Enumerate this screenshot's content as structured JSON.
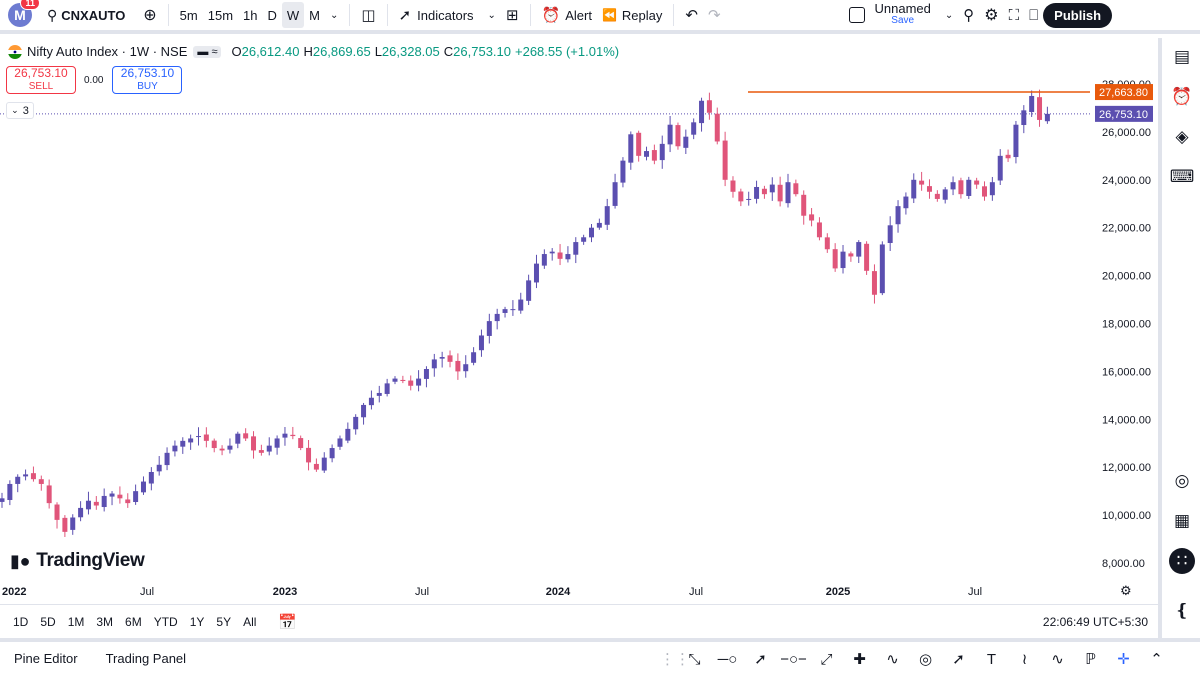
{
  "toolbar": {
    "avatar_letter": "M",
    "notification_count": "11",
    "symbol": "CNXAUTO",
    "timeframes": [
      "5m",
      "15m",
      "1h",
      "D",
      "W",
      "M"
    ],
    "active_timeframe": "W",
    "indicators_label": "Indicators",
    "alert_label": "Alert",
    "replay_label": "Replay",
    "layout_name": "Unnamed",
    "save_label": "Save",
    "publish_label": "Publish"
  },
  "legend": {
    "title": "Nifty Auto Index · 1W · NSE",
    "o_key": "O",
    "o_val": "26,612.40",
    "h_key": "H",
    "h_val": "26,869.65",
    "l_key": "L",
    "l_val": "26,328.05",
    "c_key": "C",
    "c_val": "26,753.10",
    "change": "+268.55 (+1.01%)"
  },
  "trading": {
    "sell_price": "26,753.10",
    "sell_label": "SELL",
    "spread": "0.00",
    "buy_price": "26,753.10",
    "buy_label": "BUY",
    "collapse_count": "3"
  },
  "watermark": "TradingView",
  "range_buttons": [
    "1D",
    "5D",
    "1M",
    "3M",
    "6M",
    "YTD",
    "1Y",
    "5Y",
    "All"
  ],
  "clock": "22:06:49 UTC+5:30",
  "bottom_tabs": {
    "pine": "Pine Editor",
    "panel": "Trading Panel"
  },
  "colors": {
    "up": "#5b4fb0",
    "down": "#e0557a",
    "line": "#e8590c",
    "price": "#5b4fb0"
  },
  "chart_data": {
    "type": "candlestick",
    "y_ticks": [
      "8,000.00",
      "10,000.00",
      "12,000.00",
      "14,000.00",
      "16,000.00",
      "18,000.00",
      "20,000.00",
      "22,000.00",
      "24,000.00",
      "26,000.00",
      "28,000.00"
    ],
    "y_tick_values": [
      8000,
      10000,
      12000,
      14000,
      16000,
      18000,
      20000,
      22000,
      24000,
      26000,
      28000
    ],
    "x_ticks": [
      "2022",
      "Jul",
      "2023",
      "Jul",
      "2024",
      "Jul",
      "2025",
      "Jul"
    ],
    "x_tick_values": [
      "2022-01",
      "2022-07",
      "2023-01",
      "2023-07",
      "2024-01",
      "2024-07",
      "2025-01",
      "2025-07"
    ],
    "horizontal_line": {
      "value": 27663.8,
      "label": "27,663.80"
    },
    "last_price": {
      "value": 26753.1,
      "label": "26,753.10"
    },
    "weekly_close": [
      10700,
      11300,
      11600,
      11700,
      11500,
      11300,
      10500,
      9800,
      9300,
      9900,
      10300,
      10600,
      10400,
      10800,
      10900,
      10700,
      10500,
      11000,
      11400,
      11800,
      12100,
      12600,
      12900,
      13100,
      13200,
      13300,
      13100,
      12800,
      12700,
      12900,
      13400,
      13200,
      12700,
      12600,
      12900,
      13200,
      13400,
      13300,
      12800,
      12200,
      11900,
      12400,
      12800,
      13200,
      13600,
      14100,
      14600,
      14900,
      15100,
      15500,
      15700,
      15600,
      15400,
      15700,
      16100,
      16500,
      16600,
      16400,
      16000,
      16300,
      16800,
      17500,
      18100,
      18400,
      18600,
      18600,
      19000,
      19800,
      20500,
      20900,
      21000,
      20700,
      20900,
      21400,
      21600,
      22000,
      22200,
      22900,
      23900,
      24800,
      25900,
      25000,
      25200,
      24800,
      25500,
      26300,
      25400,
      25800,
      26400,
      27300,
      26800,
      25600,
      24000,
      23500,
      23100,
      23200,
      23700,
      23400,
      23800,
      23100,
      23900,
      23400,
      22500,
      22300,
      21600,
      21100,
      20300,
      21000,
      20800,
      21400,
      20200,
      19200,
      21300,
      22100,
      22900,
      23300,
      24000,
      23800,
      23500,
      23200,
      23600,
      23900,
      23400,
      24000,
      23800,
      23300,
      23900,
      25000,
      24900,
      26300,
      26900,
      27500,
      26500,
      26753
    ]
  }
}
